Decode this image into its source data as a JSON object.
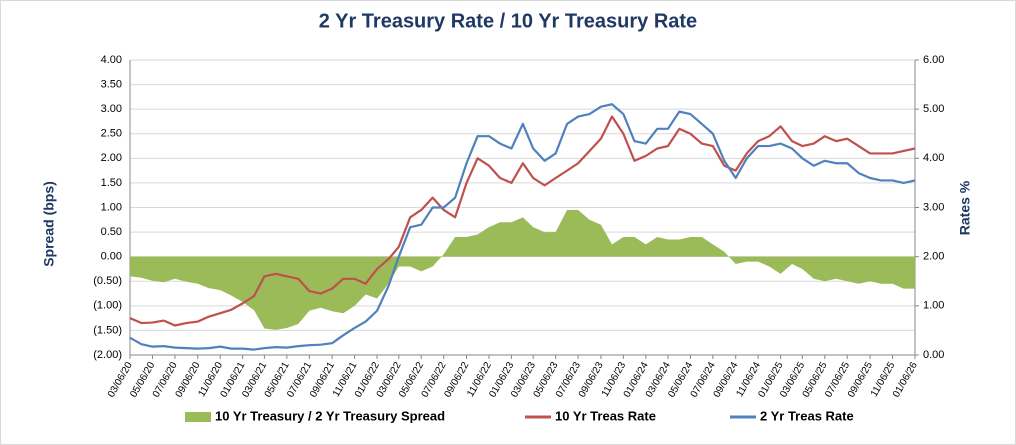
{
  "chart_data": {
    "type": "line",
    "title": "2 Yr Treasury Rate / 10 Yr Treasury Rate",
    "ylabel": "Spread (bps)",
    "y2label": "Rates %",
    "x": [
      "03/06/20",
      "04/06/20",
      "05/06/20",
      "06/06/20",
      "07/06/20",
      "08/06/20",
      "09/06/20",
      "10/06/20",
      "11/06/20",
      "12/06/20",
      "01/06/21",
      "02/06/21",
      "03/06/21",
      "04/06/21",
      "05/06/21",
      "06/06/21",
      "07/06/21",
      "08/06/21",
      "09/06/21",
      "10/06/21",
      "11/06/21",
      "12/06/21",
      "01/06/22",
      "02/06/22",
      "03/06/22",
      "04/06/22",
      "05/06/22",
      "06/06/22",
      "07/06/22",
      "08/06/22",
      "09/06/22",
      "10/06/22",
      "11/06/22",
      "12/06/22",
      "01/06/23",
      "02/06/23",
      "03/06/23",
      "04/06/23",
      "05/06/23",
      "06/06/23",
      "07/06/23",
      "08/06/23",
      "09/06/23",
      "10/06/23",
      "11/06/23",
      "12/06/23",
      "01/06/24",
      "02/06/24",
      "03/06/24",
      "04/06/24",
      "05/06/24",
      "06/06/24",
      "07/06/24",
      "08/06/24",
      "09/06/24",
      "10/06/24",
      "11/06/24",
      "12/06/24",
      "01/06/25",
      "02/06/25",
      "03/06/25",
      "04/06/25",
      "05/06/25",
      "06/06/25",
      "07/06/25",
      "08/06/25",
      "09/06/25",
      "10/06/25",
      "11/06/25",
      "12/06/25",
      "01/06/26"
    ],
    "xlim": [
      "03/06/20",
      "01/06/26"
    ],
    "xticks": [
      "03/06/20",
      "05/06/20",
      "07/06/20",
      "09/06/20",
      "11/06/20",
      "01/06/21",
      "03/06/21",
      "05/06/21",
      "07/06/21",
      "09/06/21",
      "11/06/21",
      "01/06/22",
      "03/06/22",
      "05/06/22",
      "07/06/22",
      "09/06/22",
      "11/06/22",
      "01/06/23",
      "03/06/23",
      "05/06/23",
      "07/06/23",
      "09/06/23",
      "11/06/23",
      "01/06/24",
      "03/06/24",
      "05/06/24",
      "07/06/24",
      "09/06/24",
      "11/06/24",
      "01/06/25",
      "03/06/25",
      "05/06/25",
      "07/06/25",
      "09/06/25",
      "11/06/25",
      "01/06/26"
    ],
    "ylim": [
      -2,
      4
    ],
    "yticks": [
      {
        "value": -2,
        "label": "(2.00)"
      },
      {
        "value": -1.5,
        "label": "(1.50)"
      },
      {
        "value": -1,
        "label": "(1.00)"
      },
      {
        "value": -0.5,
        "label": "(0.50)"
      },
      {
        "value": 0,
        "label": "0.00"
      },
      {
        "value": 0.5,
        "label": "0.50"
      },
      {
        "value": 1,
        "label": "1.00"
      },
      {
        "value": 1.5,
        "label": "1.50"
      },
      {
        "value": 2,
        "label": "2.00"
      },
      {
        "value": 2.5,
        "label": "2.50"
      },
      {
        "value": 3,
        "label": "3.00"
      },
      {
        "value": 3.5,
        "label": "3.50"
      },
      {
        "value": 4,
        "label": "4.00"
      }
    ],
    "y2lim": [
      0,
      6
    ],
    "y2ticks": [
      {
        "value": 0,
        "label": "0.00"
      },
      {
        "value": 1,
        "label": "1.00"
      },
      {
        "value": 2,
        "label": "2.00"
      },
      {
        "value": 3,
        "label": "3.00"
      },
      {
        "value": 4,
        "label": "4.00"
      },
      {
        "value": 5,
        "label": "5.00"
      },
      {
        "value": 6,
        "label": "6.00"
      }
    ],
    "grid": true,
    "series": [
      {
        "name": "10 Yr Treasury / 2 Yr Treasury Spread",
        "color": "#9bbb59",
        "kind": "area",
        "values": [
          -0.4,
          -0.43,
          -0.49,
          -0.52,
          -0.45,
          -0.51,
          -0.55,
          -0.64,
          -0.68,
          -0.79,
          -0.92,
          -1.09,
          -1.46,
          -1.49,
          -1.45,
          -1.37,
          -1.1,
          -1.04,
          -1.11,
          -1.15,
          -1.0,
          -0.77,
          -0.85,
          -0.55,
          -0.2,
          -0.2,
          -0.3,
          -0.2,
          0.05,
          0.4,
          0.4,
          0.45,
          0.6,
          0.7,
          0.7,
          0.8,
          0.6,
          0.5,
          0.5,
          0.95,
          0.95,
          0.75,
          0.65,
          0.25,
          0.4,
          0.4,
          0.25,
          0.4,
          0.35,
          0.35,
          0.4,
          0.4,
          0.25,
          0.1,
          -0.15,
          -0.1,
          -0.1,
          -0.2,
          -0.35,
          -0.15,
          -0.25,
          -0.45,
          -0.5,
          -0.45,
          -0.5,
          -0.55,
          -0.5,
          -0.55,
          -0.55,
          -0.65,
          -0.65
        ]
      },
      {
        "name": "10 Yr Treas Rate",
        "color": "#c0504d",
        "axis": "y2",
        "values": [
          0.75,
          0.65,
          0.66,
          0.7,
          0.6,
          0.65,
          0.68,
          0.78,
          0.85,
          0.92,
          1.05,
          1.2,
          1.6,
          1.65,
          1.6,
          1.55,
          1.3,
          1.25,
          1.35,
          1.55,
          1.55,
          1.45,
          1.75,
          1.95,
          2.2,
          2.8,
          2.95,
          3.2,
          2.95,
          2.8,
          3.5,
          4.0,
          3.85,
          3.6,
          3.5,
          3.9,
          3.6,
          3.45,
          3.6,
          3.75,
          3.9,
          4.15,
          4.4,
          4.85,
          4.5,
          3.95,
          4.05,
          4.2,
          4.25,
          4.6,
          4.5,
          4.3,
          4.25,
          3.85,
          3.75,
          4.1,
          4.35,
          4.45,
          4.65,
          4.35,
          4.25,
          4.3,
          4.45,
          4.35,
          4.4,
          4.25,
          4.1,
          4.1,
          4.1,
          4.15,
          4.2
        ]
      },
      {
        "name": "2 Yr Treas Rate",
        "color": "#4f81bd",
        "axis": "y2",
        "values": [
          0.35,
          0.22,
          0.17,
          0.18,
          0.15,
          0.14,
          0.13,
          0.14,
          0.17,
          0.13,
          0.13,
          0.11,
          0.14,
          0.16,
          0.15,
          0.18,
          0.2,
          0.21,
          0.24,
          0.4,
          0.55,
          0.68,
          0.9,
          1.4,
          2.0,
          2.6,
          2.65,
          3.0,
          3.0,
          3.2,
          3.9,
          4.45,
          4.45,
          4.3,
          4.2,
          4.7,
          4.2,
          3.95,
          4.1,
          4.7,
          4.85,
          4.9,
          5.05,
          5.1,
          4.9,
          4.35,
          4.3,
          4.6,
          4.6,
          4.95,
          4.9,
          4.7,
          4.5,
          3.95,
          3.6,
          4.0,
          4.25,
          4.25,
          4.3,
          4.2,
          4.0,
          3.85,
          3.95,
          3.9,
          3.9,
          3.7,
          3.6,
          3.55,
          3.55,
          3.5,
          3.55
        ]
      }
    ]
  }
}
